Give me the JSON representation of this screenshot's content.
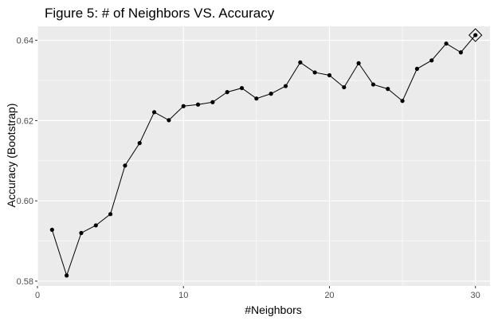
{
  "chart_data": {
    "type": "line",
    "title": "Figure 5: # of Neighbors VS. Accuracy",
    "xlabel": "#Neighbors",
    "ylabel": "Accuracy (Bootstrap)",
    "xlim": [
      0,
      31
    ],
    "ylim": [
      0.5788,
      0.6435
    ],
    "x_ticks": [
      0,
      10,
      20,
      30
    ],
    "y_ticks": [
      0.58,
      0.6,
      0.62,
      0.64
    ],
    "x_tick_labels": [
      "0",
      "10",
      "20",
      "30"
    ],
    "y_tick_labels": [
      "0.58",
      "0.60",
      "0.62",
      "0.64"
    ],
    "grid": true,
    "panel_background": "#ebebeb",
    "grid_color": "#ffffff",
    "line_color": "#000000",
    "point_color": "#000000",
    "series": [
      {
        "x": [
          1,
          2,
          3,
          4,
          5,
          6,
          7,
          8,
          9,
          10,
          11,
          12,
          13,
          14,
          15,
          16,
          17,
          18,
          19,
          20,
          21,
          22,
          23,
          24,
          25,
          26,
          27,
          28,
          29,
          30
        ],
        "values": [
          0.5928,
          0.5814,
          0.592,
          0.5939,
          0.5967,
          0.6088,
          0.6144,
          0.6221,
          0.6201,
          0.6236,
          0.624,
          0.6246,
          0.6271,
          0.6281,
          0.6255,
          0.6267,
          0.6286,
          0.6345,
          0.632,
          0.6313,
          0.6283,
          0.6343,
          0.629,
          0.6279,
          0.6249,
          0.6329,
          0.635,
          0.6392,
          0.637,
          0.6413
        ]
      }
    ],
    "highlight": {
      "x": 30,
      "y": 0.6413,
      "marker": "diamond-open"
    }
  }
}
